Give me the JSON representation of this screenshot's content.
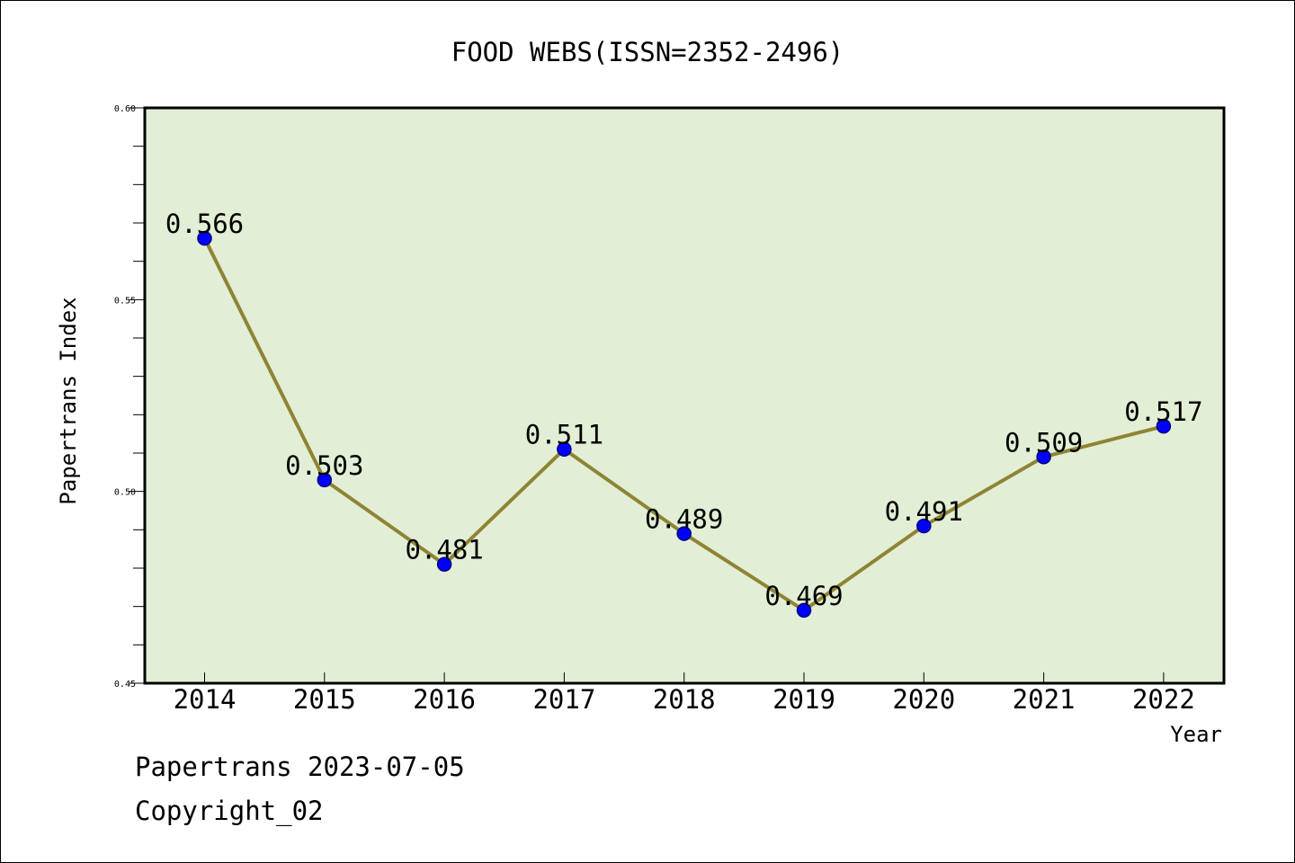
{
  "chart_data": {
    "type": "line",
    "title": "FOOD WEBS(ISSN=2352-2496)",
    "xlabel": "Year",
    "ylabel": "Papertrans Index",
    "categories": [
      "2014",
      "2015",
      "2016",
      "2017",
      "2018",
      "2019",
      "2020",
      "2021",
      "2022"
    ],
    "values": [
      0.566,
      0.503,
      0.481,
      0.511,
      0.489,
      0.469,
      0.491,
      0.509,
      0.517
    ],
    "data_labels": [
      "0.566",
      "0.503",
      "0.481",
      "0.511",
      "0.489",
      "0.469",
      "0.491",
      "0.509",
      "0.517"
    ],
    "ylim": [
      0.45,
      0.6
    ],
    "yticks": [
      0.45,
      0.5,
      0.55,
      0.6
    ],
    "ytick_labels": [
      "0.45",
      "0.50",
      "0.55",
      "0.60"
    ],
    "y_minor_step": 0.01,
    "grid": false,
    "colors": {
      "plot_background": "#e2efd6",
      "line": "#8f8434",
      "marker_fill": "#0000ff",
      "marker_edge": "#000080"
    }
  },
  "footer": {
    "date_text": "Papertrans 2023-07-05",
    "copyright_text": "Copyright_02"
  }
}
